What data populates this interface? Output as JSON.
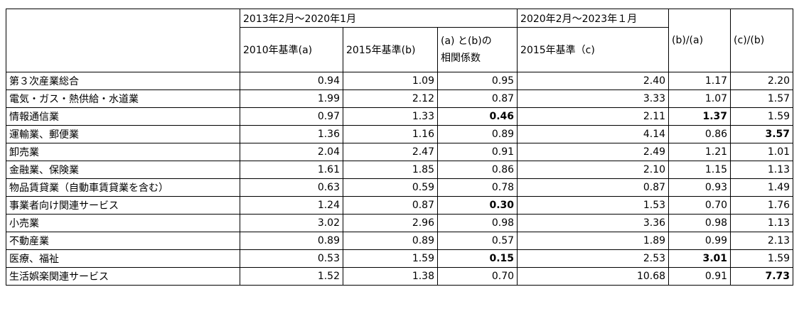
{
  "header": {
    "group1": "2013年2月～2020年1月",
    "group2": "2020年2月～2023年１月",
    "col_a": "2010年基準(a)",
    "col_b": "2015年基準(b)",
    "col_corr_line1": "(a) と(b)の",
    "col_corr_line2": "相関係数",
    "col_c": "2015年基準（c)",
    "col_ba": "(b)/(a)",
    "col_cb": "(c)/(b)"
  },
  "rows": [
    {
      "name": "第３次産業総合",
      "a": "0.94",
      "b": "1.09",
      "corr": "0.95",
      "c": "2.40",
      "ba": "1.17",
      "cb": "2.20"
    },
    {
      "name": "電気・ガス・熱供給・水道業",
      "a": "1.99",
      "b": "2.12",
      "corr": "0.87",
      "c": "3.33",
      "ba": "1.07",
      "cb": "1.57"
    },
    {
      "name": "情報通信業",
      "a": "0.97",
      "b": "1.33",
      "corr": "0.46",
      "c": "2.11",
      "ba": "1.37",
      "cb": "1.59"
    },
    {
      "name": "運輸業、郵便業",
      "a": "1.36",
      "b": "1.16",
      "corr": "0.89",
      "c": "4.14",
      "ba": "0.86",
      "cb": "3.57"
    },
    {
      "name": "卸売業",
      "a": "2.04",
      "b": "2.47",
      "corr": "0.91",
      "c": "2.49",
      "ba": "1.21",
      "cb": "1.01"
    },
    {
      "name": "金融業、保険業",
      "a": "1.61",
      "b": "1.85",
      "corr": "0.86",
      "c": "2.10",
      "ba": "1.15",
      "cb": "1.13"
    },
    {
      "name": "物品賃貸業（自動車賃貸業を含む）",
      "a": "0.63",
      "b": "0.59",
      "corr": "0.78",
      "c": "0.87",
      "ba": "0.93",
      "cb": "1.49"
    },
    {
      "name": "事業者向け関連サービス",
      "a": "1.24",
      "b": "0.87",
      "corr": "0.30",
      "c": "1.53",
      "ba": "0.70",
      "cb": "1.76"
    },
    {
      "name": "小売業",
      "a": "3.02",
      "b": "2.96",
      "corr": "0.98",
      "c": "3.36",
      "ba": "0.98",
      "cb": "1.13"
    },
    {
      "name": "不動産業",
      "a": "0.89",
      "b": "0.89",
      "corr": "0.57",
      "c": "1.89",
      "ba": "0.99",
      "cb": "2.13"
    },
    {
      "name": "医療、福祉",
      "a": "0.53",
      "b": "1.59",
      "corr": "0.15",
      "c": "2.53",
      "ba": "3.01",
      "cb": "1.59"
    },
    {
      "name": "生活娯楽関連サービス",
      "a": "1.52",
      "b": "1.38",
      "corr": "0.70",
      "c": "10.68",
      "ba": "0.91",
      "cb": "7.73"
    }
  ]
}
